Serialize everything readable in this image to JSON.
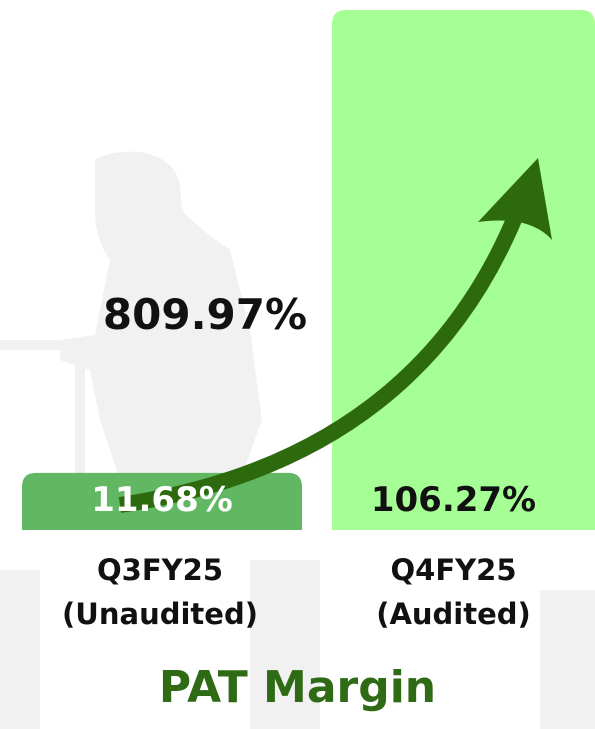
{
  "chart_data": {
    "type": "bar",
    "title": "PAT Margin",
    "categories": [
      "Q3FY25 (Unaudited)",
      "Q4FY25 (Audited)"
    ],
    "values": [
      11.68,
      106.27
    ],
    "value_labels": [
      "11.68%",
      "106.27%"
    ],
    "colors": [
      "#62b862",
      "#a6ff95"
    ],
    "annotation": "809.97%"
  }
}
